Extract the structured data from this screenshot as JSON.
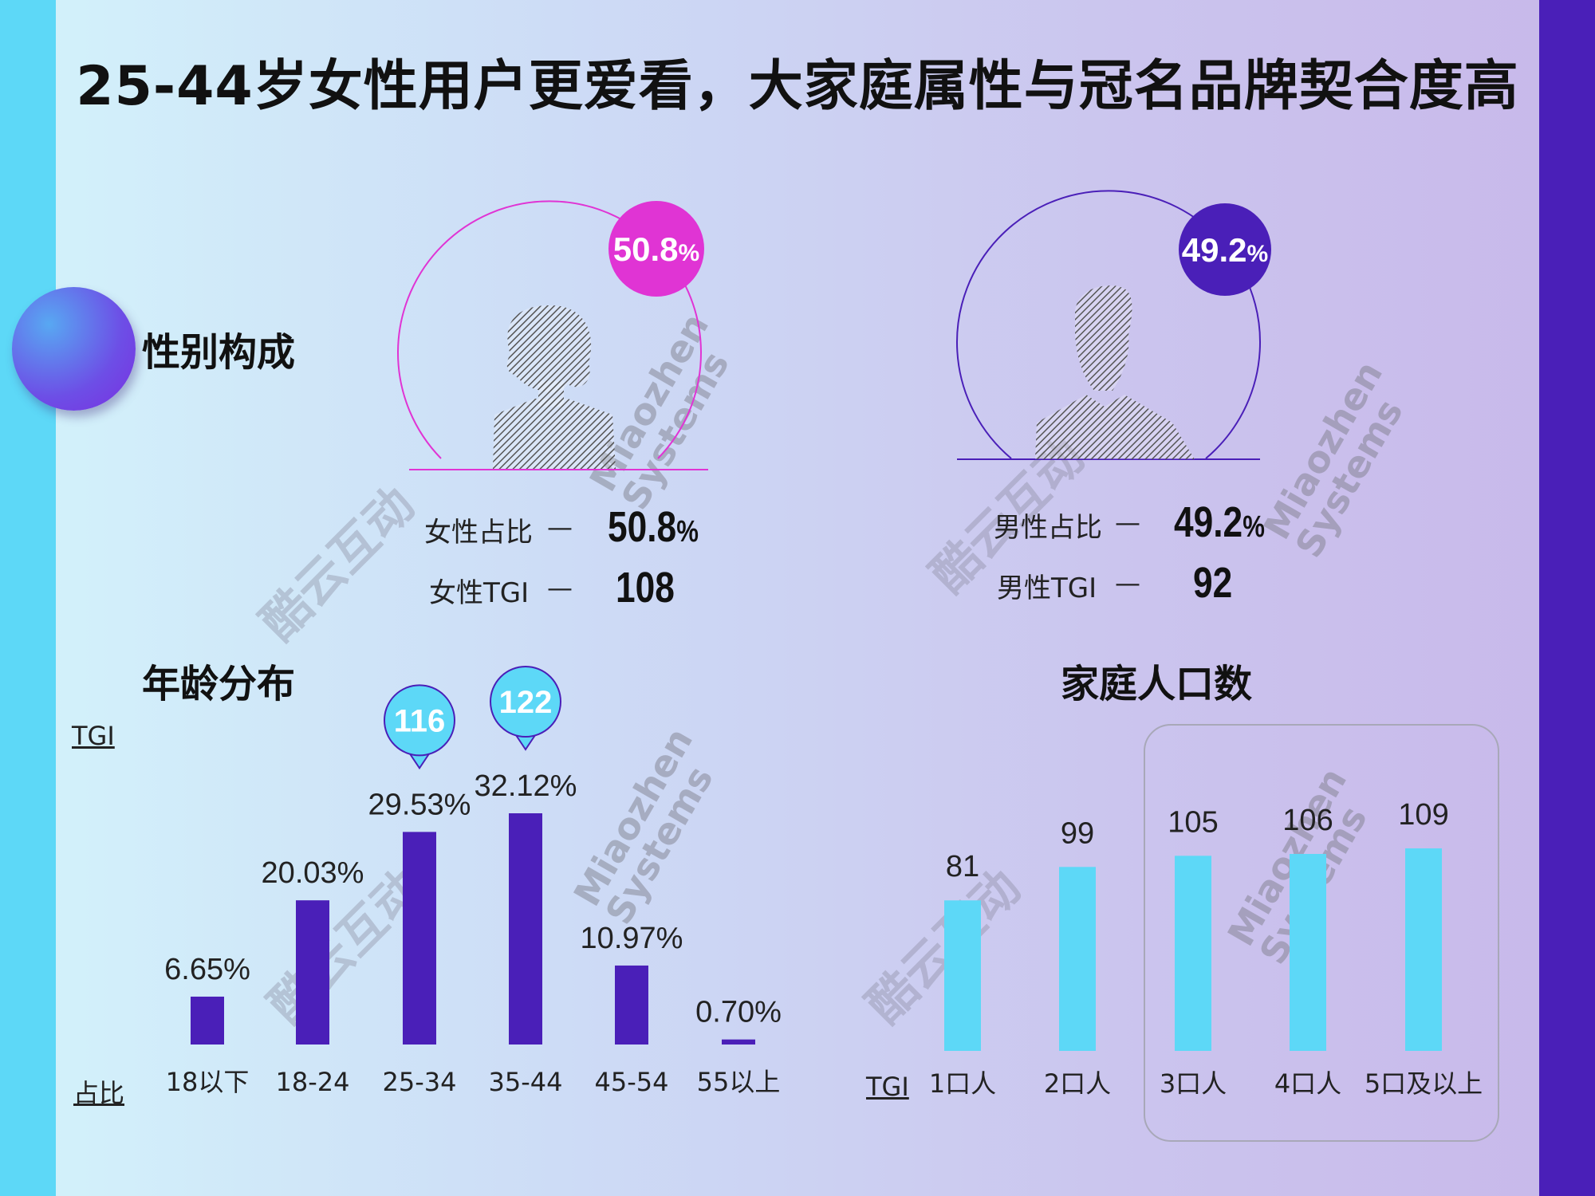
{
  "title": "25-44岁女性用户更爱看，大家庭属性与冠名品牌契合度高",
  "gender": {
    "section_title": "性别构成",
    "female": {
      "badge_value": "50.8",
      "badge_unit": "%",
      "share_label": "女性占比",
      "share_value": "50.8",
      "share_unit": "%",
      "tgi_label": "女性TGI",
      "tgi_value": "108",
      "color": "#e034d4"
    },
    "male": {
      "badge_value": "49.2",
      "badge_unit": "%",
      "share_label": "男性占比",
      "share_value": "49.2",
      "share_unit": "%",
      "tgi_label": "男性TGI",
      "tgi_value": "92",
      "color": "#4a1fb8"
    },
    "dash": "—"
  },
  "age_section": {
    "section_title": "年龄分布",
    "tgi_axis_label": "TGI",
    "share_axis_label": "占比"
  },
  "household_section": {
    "section_title": "家庭人口数",
    "tgi_axis_label": "TGI"
  },
  "watermarks": {
    "brand_cn": "酷云互动",
    "brand_en_1": "Miaozhen",
    "brand_en_2": "Systems"
  },
  "chart_data": [
    {
      "type": "bar",
      "title": "年龄分布",
      "categories": [
        "18以下",
        "18-24",
        "25-34",
        "35-44",
        "45-54",
        "55以上"
      ],
      "series": [
        {
          "name": "占比",
          "values": [
            6.65,
            20.03,
            29.53,
            32.12,
            10.97,
            0.7
          ],
          "labels": [
            "6.65%",
            "20.03%",
            "29.53%",
            "32.12%",
            "10.97%",
            "0.70%"
          ]
        }
      ],
      "callouts": [
        {
          "category": "25-34",
          "tgi": "116"
        },
        {
          "category": "35-44",
          "tgi": "122"
        }
      ],
      "ylim": [
        0,
        35
      ],
      "bar_color": "#4a1fb8",
      "callout_color": "#5dd8f7",
      "callout_border": "#4a1fb8"
    },
    {
      "type": "bar",
      "title": "家庭人口数",
      "categories": [
        "1口人",
        "2口人",
        "3口人",
        "4口人",
        "5口及以上"
      ],
      "series": [
        {
          "name": "TGI",
          "values": [
            81,
            99,
            105,
            106,
            109
          ]
        }
      ],
      "ylim": [
        0,
        125
      ],
      "highlighted_categories": [
        "3口人",
        "4口人",
        "5口及以上"
      ],
      "bar_color": "#5dd8f7"
    }
  ]
}
